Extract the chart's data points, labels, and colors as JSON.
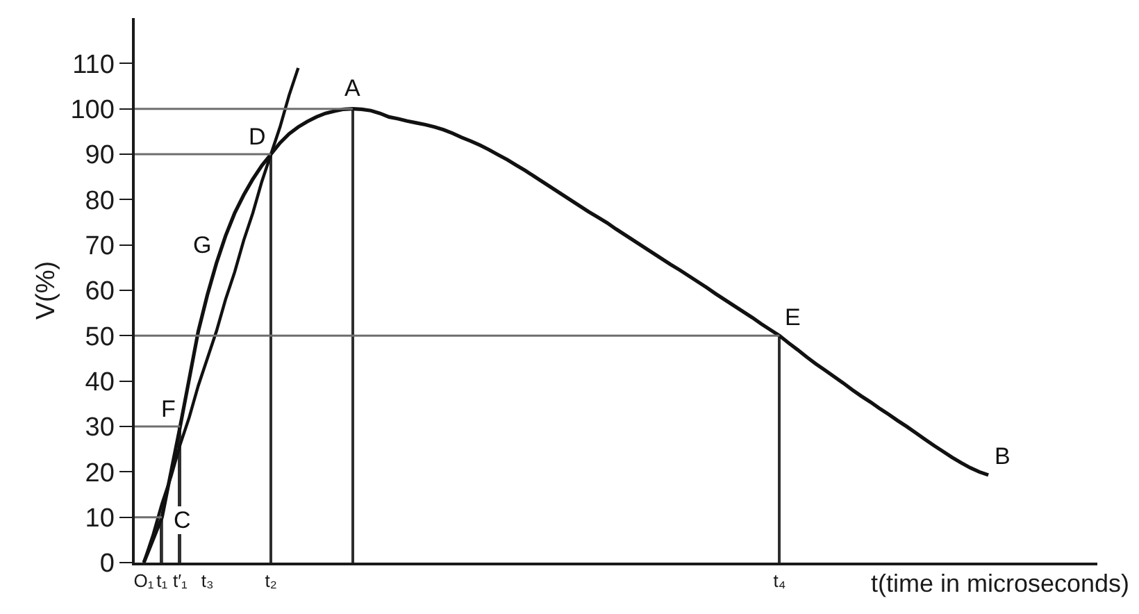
{
  "chart_data": {
    "type": "line",
    "xlabel": "t(time in microseconds)",
    "ylabel": "V(%)",
    "ylim": [
      0,
      120
    ],
    "yticks": [
      0,
      10,
      20,
      30,
      40,
      50,
      60,
      70,
      80,
      90,
      100,
      110
    ],
    "marker": "none",
    "categories": [
      null,
      "O₁",
      null,
      "t₁",
      null,
      "t′₁",
      null,
      null,
      "t₃",
      null,
      null,
      null,
      null,
      null,
      null,
      "t₂",
      null,
      null,
      null,
      null,
      null,
      null,
      null,
      null,
      null,
      null,
      null,
      null,
      null,
      null,
      null,
      null,
      null,
      null,
      null,
      null,
      null,
      null,
      null,
      null,
      null,
      null,
      null,
      null,
      null,
      null,
      null,
      null,
      null,
      null,
      null,
      null,
      null,
      null,
      null,
      null,
      null,
      null,
      null,
      null,
      null,
      null,
      null,
      null,
      null,
      null,
      null,
      null,
      null,
      null,
      null,
      "t₄",
      null,
      null,
      null,
      null,
      null,
      null,
      null,
      null,
      null,
      null,
      null,
      null,
      null,
      null,
      null,
      null,
      null,
      null,
      null,
      null,
      null,
      null,
      null,
      null,
      null,
      null,
      null,
      null,
      null,
      null,
      null,
      null,
      null,
      null,
      null
    ],
    "series": [
      {
        "color": "#111111",
        "values": [
          null,
          0,
          5,
          10,
          20,
          30,
          40.5,
          51,
          59,
          66,
          72,
          77,
          81,
          84.5,
          87.5,
          90,
          92.5,
          94.5,
          96,
          97.2,
          98.2,
          99,
          99.5,
          99.9,
          100,
          99.9,
          99.6,
          99,
          98.2,
          97.8,
          97.3,
          96.9,
          96.5,
          96,
          95.4,
          94.6,
          93.7,
          92.9,
          92,
          91,
          89.9,
          88.8,
          87.6,
          86.4,
          85.1,
          83.8,
          82.5,
          81.2,
          79.9,
          78.6,
          77.3,
          76.1,
          74.9,
          73.5,
          72.2,
          70.9,
          69.6,
          68.3,
          67,
          65.7,
          64.5,
          63.2,
          61.9,
          60.6,
          59.2,
          57.9,
          56.6,
          55.3,
          54,
          52.6,
          51.3,
          50,
          48.4,
          46.9,
          45.3,
          43.8,
          42.4,
          41,
          39.6,
          38.1,
          36.7,
          35.4,
          34,
          32.7,
          31.3,
          30,
          28.6,
          27.2,
          25.8,
          24.5,
          23.2,
          22,
          20.9,
          20,
          19.3,
          null,
          null,
          null,
          null,
          null,
          null,
          null,
          null,
          null,
          null,
          null,
          null
        ],
        "value_labels": [
          null,
          null,
          null,
          "C",
          null,
          "F",
          null,
          null,
          null,
          "G",
          null,
          null,
          null,
          null,
          null,
          "D",
          null,
          null,
          null,
          null,
          null,
          null,
          null,
          null,
          "A",
          null,
          null,
          null,
          null,
          null,
          null,
          null,
          null,
          null,
          null,
          null,
          null,
          null,
          null,
          null,
          null,
          null,
          null,
          null,
          null,
          null,
          null,
          null,
          null,
          null,
          null,
          null,
          null,
          null,
          null,
          null,
          null,
          null,
          null,
          null,
          null,
          null,
          null,
          null,
          null,
          null,
          null,
          null,
          null,
          null,
          null,
          "E",
          null,
          null,
          null,
          null,
          null,
          null,
          null,
          null,
          null,
          null,
          null,
          null,
          null,
          null,
          null,
          null,
          null,
          null,
          null,
          null,
          null,
          null,
          "B",
          null,
          null,
          null,
          null,
          null,
          null,
          null,
          null,
          null,
          null,
          null,
          null
        ]
      },
      {
        "color": "#111111",
        "values": [
          null,
          0,
          6,
          13,
          19,
          26,
          32,
          39,
          45,
          51,
          58,
          64,
          71,
          77,
          84,
          90,
          96,
          103,
          109,
          null,
          null,
          null,
          null,
          null,
          null,
          null,
          null,
          null,
          null,
          null,
          null,
          null,
          null,
          null,
          null,
          null,
          null,
          null,
          null,
          null,
          null,
          null,
          null,
          null,
          null,
          null,
          null,
          null,
          null,
          null,
          null,
          null,
          null,
          null,
          null,
          null,
          null,
          null,
          null,
          null,
          null,
          null,
          null,
          null,
          null,
          null,
          null,
          null,
          null,
          null,
          null,
          null,
          null,
          null,
          null,
          null,
          null,
          null,
          null,
          null,
          null,
          null,
          null,
          null,
          null,
          null,
          null,
          null,
          null,
          null,
          null,
          null,
          null,
          null,
          null,
          null,
          null,
          null,
          null,
          null,
          null,
          null,
          null,
          null,
          null,
          null,
          null
        ]
      },
      {
        "color": "#6e6e6e",
        "values": [
          100,
          100,
          100,
          100,
          100,
          100,
          100,
          100,
          100,
          100,
          100,
          100,
          100,
          100,
          100,
          100,
          100,
          100,
          100,
          100,
          100,
          100,
          100,
          100,
          100,
          null,
          null,
          null,
          null,
          null,
          null,
          null,
          null,
          null,
          null,
          null,
          null,
          null,
          null,
          null,
          null,
          null,
          null,
          null,
          null,
          null,
          null,
          null,
          null,
          null,
          null,
          null,
          null,
          null,
          null,
          null,
          null,
          null,
          null,
          null,
          null,
          null,
          null,
          null,
          null,
          null,
          null,
          null,
          null,
          null,
          null,
          null,
          null,
          null,
          null,
          null,
          null,
          null,
          null,
          null,
          null,
          null,
          null,
          null,
          null,
          null,
          null,
          null,
          null,
          null,
          null,
          null,
          null,
          null,
          null,
          null,
          null,
          null,
          null,
          null,
          null,
          null,
          null,
          null,
          null,
          null,
          null
        ]
      },
      {
        "color": "#6e6e6e",
        "values": [
          90,
          90,
          90,
          90,
          90,
          90,
          90,
          90,
          90,
          90,
          90,
          90,
          90,
          90,
          90,
          90,
          null,
          null,
          null,
          null,
          null,
          null,
          null,
          null,
          null,
          null,
          null,
          null,
          null,
          null,
          null,
          null,
          null,
          null,
          null,
          null,
          null,
          null,
          null,
          null,
          null,
          null,
          null,
          null,
          null,
          null,
          null,
          null,
          null,
          null,
          null,
          null,
          null,
          null,
          null,
          null,
          null,
          null,
          null,
          null,
          null,
          null,
          null,
          null,
          null,
          null,
          null,
          null,
          null,
          null,
          null,
          null,
          null,
          null,
          null,
          null,
          null,
          null,
          null,
          null,
          null,
          null,
          null,
          null,
          null,
          null,
          null,
          null,
          null,
          null,
          null,
          null,
          null,
          null,
          null,
          null,
          null,
          null,
          null,
          null,
          null,
          null,
          null,
          null,
          null,
          null,
          null
        ]
      },
      {
        "color": "#6e6e6e",
        "values": [
          50,
          50,
          50,
          50,
          50,
          50,
          50,
          50,
          50,
          50,
          50,
          50,
          50,
          50,
          50,
          50,
          50,
          50,
          50,
          50,
          50,
          50,
          50,
          50,
          50,
          50,
          50,
          50,
          50,
          50,
          50,
          50,
          50,
          50,
          50,
          50,
          50,
          50,
          50,
          50,
          50,
          50,
          50,
          50,
          50,
          50,
          50,
          50,
          50,
          50,
          50,
          50,
          50,
          50,
          50,
          50,
          50,
          50,
          50,
          50,
          50,
          50,
          50,
          50,
          50,
          50,
          50,
          50,
          50,
          50,
          50,
          50,
          null,
          null,
          null,
          null,
          null,
          null,
          null,
          null,
          null,
          null,
          null,
          null,
          null,
          null,
          null,
          null,
          null,
          null,
          null,
          null,
          null,
          null,
          null,
          null,
          null,
          null,
          null,
          null,
          null,
          null,
          null,
          null,
          null,
          null,
          null
        ]
      },
      {
        "color": "#6e6e6e",
        "values": [
          30,
          30,
          30,
          30,
          30,
          30,
          null,
          null,
          null,
          null,
          null,
          null,
          null,
          null,
          null,
          null,
          null,
          null,
          null,
          null,
          null,
          null,
          null,
          null,
          null,
          null,
          null,
          null,
          null,
          null,
          null,
          null,
          null,
          null,
          null,
          null,
          null,
          null,
          null,
          null,
          null,
          null,
          null,
          null,
          null,
          null,
          null,
          null,
          null,
          null,
          null,
          null,
          null,
          null,
          null,
          null,
          null,
          null,
          null,
          null,
          null,
          null,
          null,
          null,
          null,
          null,
          null,
          null,
          null,
          null,
          null,
          null,
          null,
          null,
          null,
          null,
          null,
          null,
          null,
          null,
          null,
          null,
          null,
          null,
          null,
          null,
          null,
          null,
          null,
          null,
          null,
          null,
          null,
          null,
          null,
          null,
          null,
          null,
          null,
          null,
          null,
          null,
          null,
          null,
          null,
          null,
          null
        ]
      },
      {
        "color": "#6e6e6e",
        "values": [
          10,
          10,
          10,
          10,
          null,
          null,
          null,
          null,
          null,
          null,
          null,
          null,
          null,
          null,
          null,
          null,
          null,
          null,
          null,
          null,
          null,
          null,
          null,
          null,
          null,
          null,
          null,
          null,
          null,
          null,
          null,
          null,
          null,
          null,
          null,
          null,
          null,
          null,
          null,
          null,
          null,
          null,
          null,
          null,
          null,
          null,
          null,
          null,
          null,
          null,
          null,
          null,
          null,
          null,
          null,
          null,
          null,
          null,
          null,
          null,
          null,
          null,
          null,
          null,
          null,
          null,
          null,
          null,
          null,
          null,
          null,
          null,
          null,
          null,
          null,
          null,
          null,
          null,
          null,
          null,
          null,
          null,
          null,
          null,
          null,
          null,
          null,
          null,
          null,
          null,
          null,
          null,
          null,
          null,
          null,
          null,
          null,
          null,
          null,
          null,
          null,
          null,
          null,
          null,
          null,
          null,
          null
        ]
      },
      {
        "type": "bar",
        "color": "#2e2e2e",
        "values": [
          null,
          null,
          null,
          10,
          null,
          30,
          null,
          null,
          null,
          null,
          null,
          null,
          null,
          null,
          null,
          90,
          null,
          null,
          null,
          null,
          null,
          null,
          null,
          null,
          100,
          null,
          null,
          null,
          null,
          null,
          null,
          null,
          null,
          null,
          null,
          null,
          null,
          null,
          null,
          null,
          null,
          null,
          null,
          null,
          null,
          null,
          null,
          null,
          null,
          null,
          null,
          null,
          null,
          null,
          null,
          null,
          null,
          null,
          null,
          null,
          null,
          null,
          null,
          null,
          null,
          null,
          null,
          null,
          null,
          null,
          null,
          50,
          null,
          null,
          null,
          null,
          null,
          null,
          null,
          null,
          null,
          null,
          null,
          null,
          null,
          null,
          null,
          null,
          null,
          null,
          null,
          null,
          null,
          null,
          null,
          null,
          null,
          null,
          null,
          null,
          null,
          null,
          null,
          null,
          null,
          null,
          null
        ]
      }
    ]
  }
}
